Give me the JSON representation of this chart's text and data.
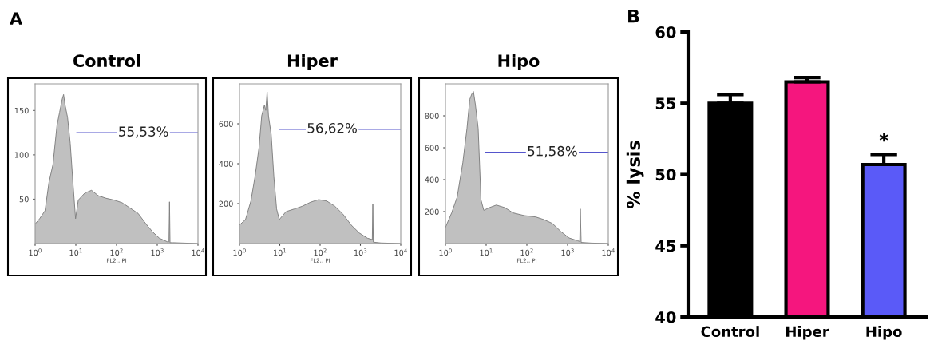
{
  "chart_data": [
    {
      "type": "area",
      "title": "Control",
      "xlabel": "FL2:: PI",
      "log": "x",
      "xlim": [
        1,
        10000
      ],
      "ylim": [
        0,
        180
      ],
      "yticks": [
        50,
        100,
        150
      ],
      "xticks": [
        {
          "value": 1,
          "label": "10$^{0}$"
        },
        {
          "value": 10,
          "label": "10$^{1}$"
        },
        {
          "value": 100,
          "label": "10$^{2}$"
        },
        {
          "value": 1000,
          "label": "10$^{3}$"
        },
        {
          "value": 10000,
          "label": "10$^{4}$"
        }
      ],
      "annotations": [
        "A",
        {
          "text": "55,53%",
          "x": 457,
          "y": 125
        }
      ],
      "series": [
        {
          "color": "#c0c0c0",
          "x": [
            1,
            1.29,
            1.75,
            2.19,
            2.74,
            3.44,
            3.99,
            4.64,
            5.0,
            5.4,
            6.27,
            7.29,
            8.47,
            9.85,
            11.5,
            16.7,
            24.3,
            35.4,
            55.6,
            87.3,
            137,
            215,
            338,
            531,
            774,
            1128,
            1771,
            1940,
            2000,
            2060,
            2393,
            10000
          ],
          "values": [
            22,
            28,
            37,
            69,
            89,
            133,
            148,
            163,
            168,
            157,
            142,
            113,
            69,
            28,
            49,
            57,
            60,
            54,
            51,
            49,
            46,
            40,
            34,
            22,
            13,
            6,
            2,
            2,
            47,
            1,
            1,
            0
          ]
        },
        {
          "type": "line",
          "color": "#5555cc",
          "x": [
            10.6,
            10000
          ],
          "values": [
            125,
            125
          ]
        }
      ]
    },
    {
      "type": "area",
      "title": "Hiper",
      "xlabel": "FL2:: PI",
      "log": "x",
      "xlim": [
        1,
        10000
      ],
      "ylim": [
        0,
        800
      ],
      "yticks": [
        200,
        400,
        600
      ],
      "xticks": [
        {
          "value": 1,
          "label": "10$^{0}$"
        },
        {
          "value": 10,
          "label": "10$^{1}$"
        },
        {
          "value": 100,
          "label": "10$^{2}$"
        },
        {
          "value": 1000,
          "label": "10$^{3}$"
        },
        {
          "value": 10000,
          "label": "10$^{4}$"
        }
      ],
      "annotations": [
        {
          "text": "56,62%",
          "x": 199,
          "y": 573
        }
      ],
      "series": [
        {
          "color": "#c0c0c0",
          "x": [
            1,
            1.41,
            1.92,
            2.42,
            3.05,
            3.56,
            4.15,
            4.49,
            4.85,
            5.24,
            6.12,
            7.14,
            8.34,
            9.73,
            14.3,
            22.8,
            36.3,
            57.7,
            91.8,
            146,
            232,
            370,
            589,
            936,
            1490,
            1970,
            2030,
            2090,
            3230,
            10000
          ],
          "values": [
            93,
            120,
            213,
            333,
            480,
            640,
            693,
            667,
            760,
            640,
            547,
            333,
            173,
            120,
            160,
            173,
            187,
            207,
            220,
            213,
            187,
            147,
            93,
            53,
            27,
            20,
            200,
            7,
            3,
            0
          ]
        },
        {
          "type": "line",
          "color": "#5555cc",
          "x": [
            9.7,
            10000
          ],
          "values": [
            573,
            573
          ]
        }
      ]
    },
    {
      "type": "area",
      "title": "Hipo",
      "xlabel": "FL2:: PI",
      "log": "x",
      "xlim": [
        1,
        10000
      ],
      "ylim": [
        0,
        1000
      ],
      "yticks": [
        200,
        400,
        600,
        800
      ],
      "xticks": [
        {
          "value": 1,
          "label": "10$^{0}$"
        },
        {
          "value": 10,
          "label": "10$^{1}$"
        },
        {
          "value": 100,
          "label": "10$^{2}$"
        },
        {
          "value": 1000,
          "label": "10$^{3}$"
        },
        {
          "value": 10000,
          "label": "10$^{4}$"
        }
      ],
      "annotations": [
        {
          "text": "51,58%",
          "x": 422,
          "y": 572
        }
      ],
      "series": [
        {
          "color": "#c0c0c0",
          "x": [
            1,
            1.42,
            1.94,
            2.67,
            3.38,
            3.96,
            4.43,
            4.87,
            5.44,
            6.37,
            7.46,
            8.74,
            12.0,
            17.8,
            28.7,
            46.0,
            86.7,
            163,
            262,
            422,
            679,
            1091,
            1754,
            1990,
            2056,
            2155,
            3870,
            10000
          ],
          "values": [
            101,
            192,
            291,
            506,
            721,
            903,
            936,
            952,
            870,
            721,
            274,
            208,
            225,
            241,
            225,
            192,
            175,
            167,
            150,
            126,
            76,
            35,
            18,
            13,
            217,
            7,
            3,
            0
          ]
        },
        {
          "type": "line",
          "color": "#5555cc",
          "x": [
            9.46,
            10000
          ],
          "values": [
            572,
            572
          ]
        }
      ]
    },
    {
      "type": "bar",
      "ylabel": "% lysis",
      "categories": [
        "Control",
        "Hiper",
        "Hipo"
      ],
      "values": [
        55.0,
        56.5,
        50.7
      ],
      "errors": [
        0.6,
        0.3,
        0.7
      ],
      "colors": [
        "#000000",
        "#f5167e",
        "#5a5af8"
      ],
      "ylim": [
        40,
        60
      ],
      "yticks": [
        40,
        45,
        50,
        55,
        60
      ],
      "annotations": [
        "B",
        "*"
      ]
    }
  ]
}
